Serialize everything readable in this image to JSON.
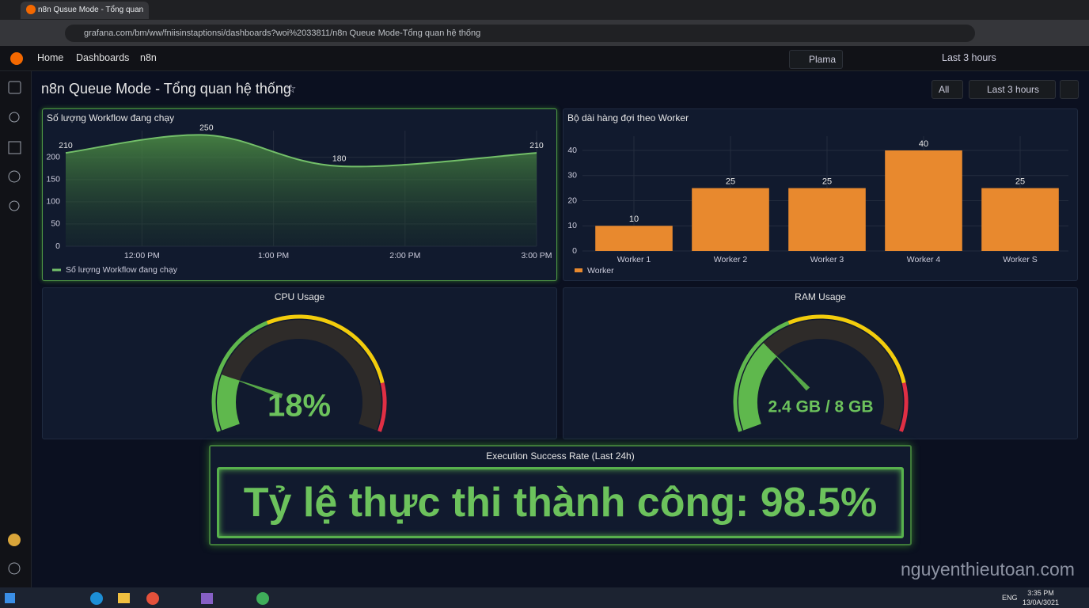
{
  "browser": {
    "tab_title": "n8n Qusue Mode - Tổng quan",
    "url": "grafana.com/bm/ww/fniisinstaptionsi/dashboards?woi%2033811/n8n Queue Mode-Tổng quan hệ thống"
  },
  "nav": {
    "breadcrumbs": [
      "Home",
      "Dashboards",
      "n8n"
    ],
    "plugin": "Plama",
    "time_range": "Last 3 hours"
  },
  "dashboard": {
    "title": "n8n Queue Mode - Tổng quan hệ thống",
    "variable": "All",
    "time_range": "Last 3 hours"
  },
  "chart_data": [
    {
      "type": "line",
      "title": "Số lượng Workflow đang chạy",
      "x": [
        11.42,
        12.49,
        13.5,
        15
      ],
      "series": [
        {
          "name": "Số lượng Workflow đang chạy",
          "color": "#73bf69",
          "values": [
            210,
            250,
            180,
            210
          ]
        }
      ],
      "xlim": [
        11.42,
        15
      ],
      "xticks": [
        {
          "value": 12,
          "label": "12:00 PM"
        },
        {
          "value": 13,
          "label": "1:00 PM"
        },
        {
          "value": 14,
          "label": "2:00 PM"
        },
        {
          "value": 15,
          "label": "3:00 PM"
        }
      ],
      "ylim": [
        0,
        260
      ],
      "yticks": [
        0,
        50,
        100,
        150,
        200
      ],
      "grid": true
    },
    {
      "type": "bar",
      "title": "Bộ dài hàng đợi theo Worker",
      "categories": [
        "Worker 1",
        "Worker 2",
        "Worker 3",
        "Worker 4",
        "Worker S"
      ],
      "series": [
        {
          "name": "Worker",
          "color": "#e8892e",
          "values": [
            10,
            25,
            25,
            40,
            25
          ]
        }
      ],
      "ylim": [
        0,
        40
      ],
      "yticks": [
        0,
        10,
        20,
        30,
        40
      ],
      "grid": true
    },
    {
      "type": "gauge",
      "title": "CPU Usage",
      "values": [
        18
      ],
      "value_labels": [
        "18%"
      ],
      "ylim": [
        0,
        100
      ],
      "thresholds": [
        {
          "value": 0,
          "color": "#5fb84d"
        },
        {
          "value": 40,
          "color": "#f2cc0c"
        },
        {
          "value": 85,
          "color": "#e02f44"
        }
      ]
    },
    {
      "type": "gauge",
      "title": "RAM Usage",
      "values": [
        2.4
      ],
      "value_labels": [
        "2.4 GB / 8 GB"
      ],
      "ylim": [
        0,
        8
      ],
      "thresholds": [
        {
          "value": 0,
          "color": "#5fb84d"
        },
        {
          "value": 3.2,
          "color": "#f2cc0c"
        },
        {
          "value": 6.8,
          "color": "#e02f44"
        }
      ]
    }
  ],
  "stat": {
    "title": "Execution Success Rate (Last 24h)",
    "text": "Tỷ lệ thực thi thành công: 98.5%"
  },
  "watermark": "nguyenthieutoan.com",
  "taskbar": {
    "language": "ENG",
    "time": "3:35 PM",
    "date": "13/0A/3021"
  }
}
